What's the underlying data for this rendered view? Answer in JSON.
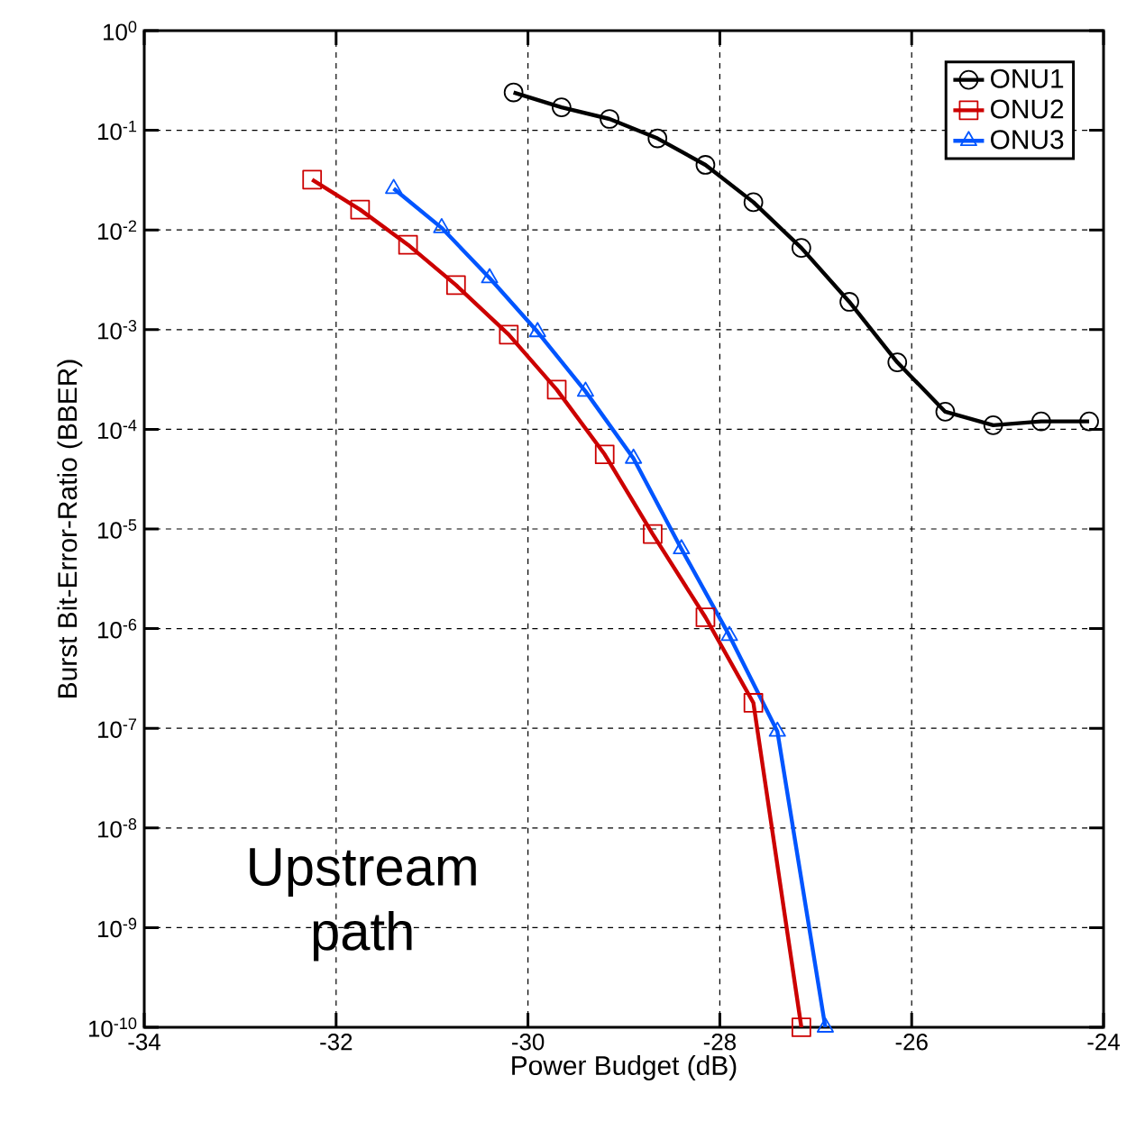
{
  "chart_data": {
    "type": "line",
    "xlabel": "Power Budget (dB)",
    "ylabel": "Burst Bit-Error-Ratio (BBER)",
    "log": "y",
    "grid": true,
    "legend": "top right",
    "xlim": [
      -34,
      -24
    ],
    "xticks": [
      -34,
      -32,
      -30,
      -28,
      -26,
      -24
    ],
    "ylim": [
      1e-10,
      1
    ],
    "yticks": [
      {
        "value": 1e-10,
        "label": "10$^{-10}$"
      },
      {
        "value": 1e-09,
        "label": "10$^{-9}$"
      },
      {
        "value": 1e-08,
        "label": "10$^{-8}$"
      },
      {
        "value": 1e-07,
        "label": "10$^{-7}$"
      },
      {
        "value": 1e-06,
        "label": "10$^{-6}$"
      },
      {
        "value": 1e-05,
        "label": "10$^{-5}$"
      },
      {
        "value": 0.0001,
        "label": "10$^{-4}$"
      },
      {
        "value": 0.001,
        "label": "10$^{-3}$"
      },
      {
        "value": 0.01,
        "label": "10$^{-2}$"
      },
      {
        "value": 0.1,
        "label": "10$^{-1}$"
      },
      {
        "value": 1,
        "label": "10$^{0}$"
      }
    ],
    "annotations": [
      "Upstream path"
    ],
    "series": [
      {
        "name": "ONU1",
        "color": "#000000",
        "marker": "circle",
        "x": [
          -30.15,
          -29.65,
          -29.15,
          -28.65,
          -28.15,
          -27.65,
          -27.15,
          -26.65,
          -26.15,
          -25.65,
          -25.15,
          -24.65,
          -24.15
        ],
        "values": [
          0.24,
          0.17,
          0.13,
          0.083,
          0.045,
          0.019,
          0.0066,
          0.0019,
          0.00047,
          0.00015,
          0.00011,
          0.00012,
          0.00012
        ]
      },
      {
        "name": "ONU2",
        "color": "#cc0000",
        "marker": "square",
        "x": [
          -32.25,
          -31.75,
          -31.25,
          -30.75,
          -30.2,
          -29.7,
          -29.2,
          -28.7,
          -28.15,
          -27.65,
          -27.15
        ],
        "values": [
          0.032,
          0.016,
          0.0071,
          0.0028,
          0.00089,
          0.00025,
          5.6e-05,
          8.9e-06,
          1.3e-06,
          1.8e-07,
          1e-10
        ]
      },
      {
        "name": "ONU3",
        "color": "#0055ff",
        "marker": "triangle",
        "x": [
          -31.4,
          -30.9,
          -30.4,
          -29.9,
          -29.4,
          -28.9,
          -28.4,
          -27.9,
          -27.4,
          -26.9
        ],
        "values": [
          0.026,
          0.0105,
          0.0033,
          0.00095,
          0.00024,
          5.1e-05,
          6.3e-06,
          8.5e-07,
          9.3e-08,
          1e-10
        ]
      }
    ]
  }
}
